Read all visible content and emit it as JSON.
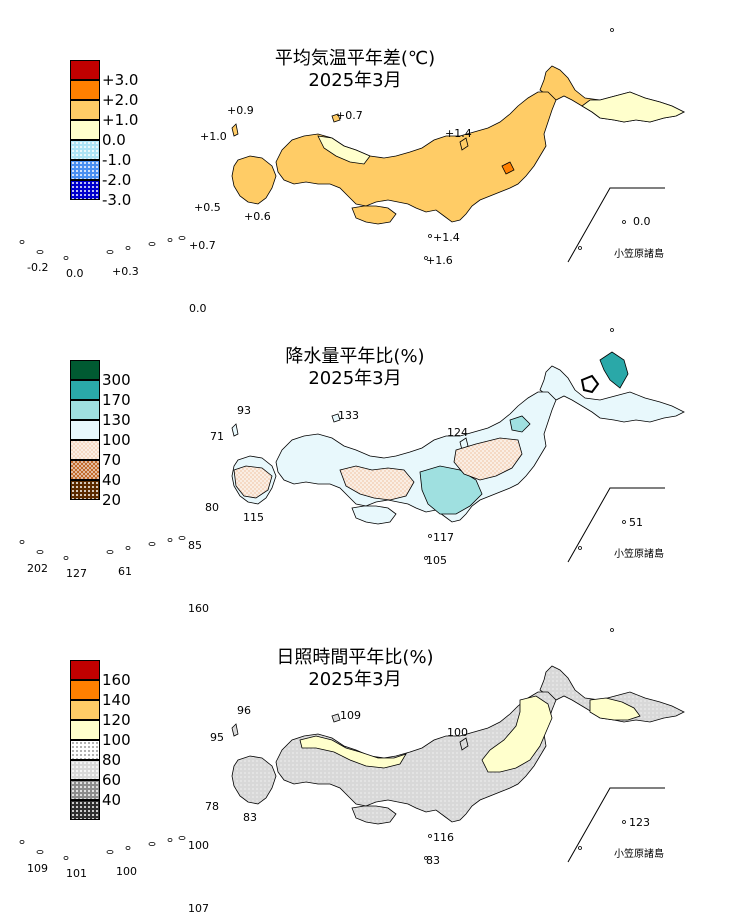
{
  "panels": [
    {
      "id": "temp",
      "title": "平均気温平年差(℃)",
      "subtitle": "2025年3月",
      "legend": [
        {
          "label": "+3.0",
          "color": "#c00000",
          "pattern": "solid"
        },
        {
          "label": "+2.0",
          "color": "#ff8000",
          "pattern": "solid"
        },
        {
          "label": "+1.0",
          "color": "#ffcc66",
          "pattern": "solid"
        },
        {
          "label": "0.0",
          "color": "#ffffcc",
          "pattern": "solid"
        },
        {
          "label": "-1.0",
          "color": "#aee3f5",
          "pattern": "dots"
        },
        {
          "label": "-2.0",
          "color": "#4a8ff0",
          "pattern": "dots"
        },
        {
          "label": "-3.0",
          "color": "#0000cc",
          "pattern": "dots"
        },
        {
          "label": "",
          "color": "",
          "pattern": "none"
        }
      ],
      "values": {
        "v1": "+0.9",
        "v2": "+0.7",
        "v3": "+1.0",
        "v4": "+1.4",
        "v5": "+0.5",
        "v6": "+0.6",
        "v7": "+1.4",
        "v8": "+1.6",
        "v9": "+0.7",
        "v10": "-0.2",
        "v11": "0.0",
        "v12": "+0.3",
        "v13": "0.0",
        "v14": "0.0"
      },
      "map_fill": "#ffcc66",
      "bonin_label": "小笠原諸島"
    },
    {
      "id": "precip",
      "title": "降水量平年比(%)",
      "subtitle": "2025年3月",
      "legend": [
        {
          "label": "300",
          "color": "#005a32",
          "pattern": "solid"
        },
        {
          "label": "170",
          "color": "#2aa8a8",
          "pattern": "solid"
        },
        {
          "label": "130",
          "color": "#9fe0e0",
          "pattern": "solid"
        },
        {
          "label": "100",
          "color": "#e8f8fc",
          "pattern": "solid"
        },
        {
          "label": "70",
          "color": "#f5d9c4",
          "pattern": "check"
        },
        {
          "label": "40",
          "color": "#c06b2c",
          "pattern": "check"
        },
        {
          "label": "20",
          "color": "#5a2a00",
          "pattern": "dots"
        },
        {
          "label": "",
          "color": "",
          "pattern": "none"
        }
      ],
      "values": {
        "v1": "93",
        "v2": "133",
        "v3": "71",
        "v4": "124",
        "v5": "80",
        "v6": "115",
        "v7": "117",
        "v8": "105",
        "v9": "85",
        "v10": "202",
        "v11": "127",
        "v12": "61",
        "v13": "160",
        "v14": "51"
      },
      "map_fill": "#e8f8fc",
      "bonin_label": "小笠原諸島"
    },
    {
      "id": "sun",
      "title": "日照時間平年比(%)",
      "subtitle": "2025年3月",
      "legend": [
        {
          "label": "160",
          "color": "#c00000",
          "pattern": "solid"
        },
        {
          "label": "140",
          "color": "#ff8000",
          "pattern": "solid"
        },
        {
          "label": "120",
          "color": "#ffcc66",
          "pattern": "solid"
        },
        {
          "label": "100",
          "color": "#ffffcc",
          "pattern": "solid"
        },
        {
          "label": "80",
          "color": "#ffffff",
          "pattern": "dots"
        },
        {
          "label": "60",
          "color": "#d8d8d8",
          "pattern": "dots"
        },
        {
          "label": "40",
          "color": "#8c8c8c",
          "pattern": "dots"
        },
        {
          "label": "",
          "color": "#303030",
          "pattern": "dots"
        }
      ],
      "values": {
        "v1": "96",
        "v2": "109",
        "v3": "95",
        "v4": "100",
        "v5": "78",
        "v6": "83",
        "v7": "116",
        "v8": "83",
        "v9": "100",
        "v10": "109",
        "v11": "101",
        "v12": "100",
        "v13": "107",
        "v14": "123"
      },
      "map_fill": "#e8e8e8",
      "bonin_label": "小笠原諸島"
    }
  ]
}
